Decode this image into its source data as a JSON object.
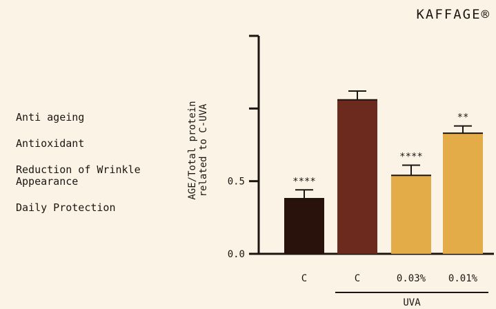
{
  "brand": "KAFFAGE®",
  "features": [
    "Anti ageing",
    "Antioxidant",
    "Reduction of Wrinkle\nAppearance",
    "Daily  Protection"
  ],
  "colors": {
    "background": "#fbf4e6",
    "control_bar": "#2a120c",
    "uva_control_bar": "#6b2a1d",
    "treatment_bar": "#e3ac48"
  },
  "chart_data": {
    "type": "bar",
    "title": "",
    "ylabel": "AGE/Total protein\nrelated to C-UVA",
    "xlabel": "",
    "ylim": [
      0,
      1.5
    ],
    "yticks": [
      {
        "value": 0.0,
        "label": "0.0"
      },
      {
        "value": 0.5,
        "label": "0.5"
      },
      {
        "value": 1.0,
        "label": ""
      },
      {
        "value": 1.5,
        "label": ""
      }
    ],
    "categories": [
      "C",
      "C",
      "0.03%",
      "0.01%"
    ],
    "values": [
      0.38,
      1.06,
      0.54,
      0.83
    ],
    "errors": [
      0.06,
      0.06,
      0.07,
      0.05
    ],
    "significance": [
      "****",
      "",
      "****",
      "**"
    ],
    "bar_colors": [
      "#2a120c",
      "#6b2a1d",
      "#e3ac48",
      "#e3ac48"
    ],
    "group_label": "UVA",
    "group_span": [
      1,
      3
    ],
    "grid": false,
    "legend": "none"
  }
}
